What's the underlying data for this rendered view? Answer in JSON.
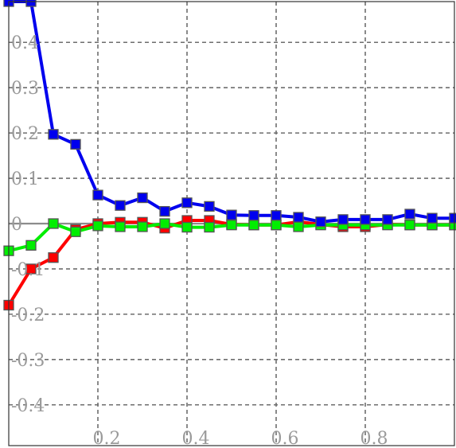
{
  "chart_data": {
    "type": "line",
    "title": "",
    "xlabel": "",
    "ylabel": "",
    "xlim": [
      0.0,
      1.0
    ],
    "ylim": [
      -0.49,
      0.49
    ],
    "grid": true,
    "x_ticks": [
      {
        "value": 0.2,
        "label": "0.2"
      },
      {
        "value": 0.4,
        "label": "0.4"
      },
      {
        "value": 0.6,
        "label": "0.6"
      },
      {
        "value": 0.8,
        "label": "0.8"
      }
    ],
    "y_ticks": [
      {
        "value": 0.4,
        "label": "0.4"
      },
      {
        "value": 0.3,
        "label": "0.3"
      },
      {
        "value": 0.2,
        "label": "0.2"
      },
      {
        "value": 0.1,
        "label": "0.1"
      },
      {
        "value": 0.0,
        "label": "0"
      },
      {
        "value": -0.1,
        "label": "-0.1"
      },
      {
        "value": -0.2,
        "label": "-0.2"
      },
      {
        "value": -0.3,
        "label": "-0.3"
      },
      {
        "value": -0.4,
        "label": "-0.4"
      }
    ],
    "x": [
      0.0,
      0.05,
      0.1,
      0.15,
      0.2,
      0.25,
      0.3,
      0.35,
      0.4,
      0.45,
      0.5,
      0.55,
      0.6,
      0.65,
      0.7,
      0.75,
      0.8,
      0.85,
      0.9,
      0.95,
      1.0
    ],
    "series": [
      {
        "color": "#ff0000",
        "values": [
          -0.18,
          -0.1,
          -0.075,
          -0.013,
          0.0,
          0.003,
          0.003,
          -0.01,
          0.007,
          0.007,
          -0.002,
          -0.003,
          -0.003,
          0.004,
          -0.002,
          -0.007,
          -0.007,
          -0.002,
          -0.003,
          -0.003,
          -0.003
        ]
      },
      {
        "color": "#00ee00",
        "values": [
          -0.06,
          -0.048,
          0.0,
          -0.018,
          -0.005,
          -0.007,
          -0.007,
          0.0,
          -0.008,
          -0.008,
          -0.003,
          -0.003,
          -0.003,
          -0.007,
          -0.003,
          -0.003,
          -0.003,
          -0.003,
          -0.003,
          -0.003,
          -0.003
        ]
      },
      {
        "color": "#0000ee",
        "values": [
          0.5,
          0.5,
          0.197,
          0.175,
          0.063,
          0.04,
          0.057,
          0.027,
          0.046,
          0.038,
          0.019,
          0.018,
          0.018,
          0.014,
          0.004,
          0.009,
          0.009,
          0.009,
          0.021,
          0.012,
          0.012
        ]
      }
    ]
  }
}
